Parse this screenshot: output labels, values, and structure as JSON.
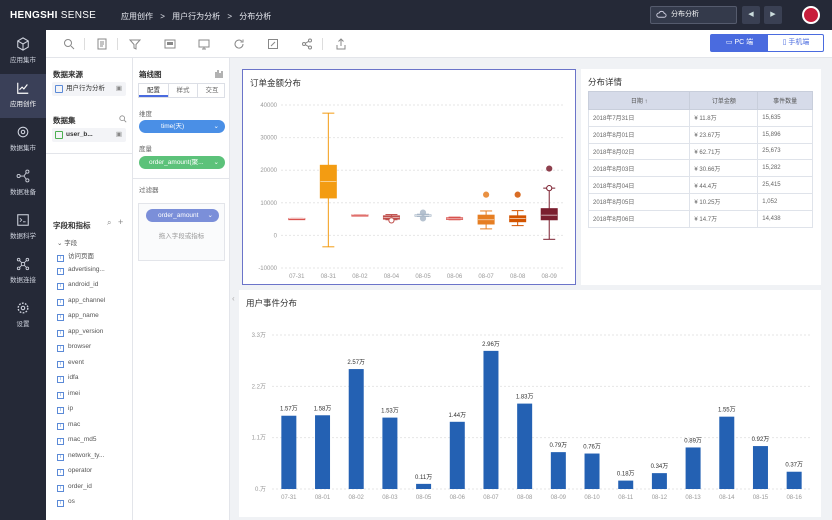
{
  "header": {
    "logo_bold": "HENGSHI",
    "logo_thin": " SENSE",
    "breadcrumb": [
      "应用创作",
      ">",
      "用户行为分析",
      ">",
      "分布分析"
    ],
    "search_value": "分布分析",
    "prev_label": "◀",
    "next_label": "▶"
  },
  "sidebar": {
    "items": [
      {
        "label": "应用集市",
        "icon": "cube-icon"
      },
      {
        "label": "应用创作",
        "icon": "chart-line-icon"
      },
      {
        "label": "数据集市",
        "icon": "database-icon"
      },
      {
        "label": "数据准备",
        "icon": "flow-icon"
      },
      {
        "label": "数据科学",
        "icon": "terminal-icon"
      },
      {
        "label": "数据连接",
        "icon": "link-icon"
      },
      {
        "label": "设置",
        "icon": "gear-icon"
      }
    ]
  },
  "toolbar": {
    "pc_label": "PC 端",
    "mobile_label": "手机端"
  },
  "datapanel": {
    "source_title": "数据来源",
    "source_value": "用户行为分析",
    "dataset_title": "数据集",
    "dataset_value": "user_b...",
    "fields_title": "字段和指标",
    "group_label": "字段",
    "fields": [
      "访问页面",
      "advertising...",
      "android_id",
      "app_channel",
      "app_name",
      "app_version",
      "browser",
      "event",
      "idfa",
      "imei",
      "ip",
      "mac",
      "mac_md5",
      "network_ty...",
      "operator",
      "order_id",
      "os"
    ]
  },
  "config": {
    "chart_type": "箱线图",
    "tabs": [
      "配置",
      "样式",
      "交互"
    ],
    "dimension_label": "维度",
    "dimension_value": "time(天)",
    "measure_label": "度量",
    "measure_value": "order_amount(聚...",
    "filter_label": "过滤器",
    "filter_value": "order_amount",
    "filter_hint": "拖入字段或指标"
  },
  "box_card": {
    "title": "订单金额分布"
  },
  "detail_card": {
    "title": "分布详情",
    "columns": [
      "日期 ↑",
      "订单金额",
      "事件数量"
    ],
    "rows": [
      [
        "2018年7月31日",
        "¥ 11.8万",
        "15,635"
      ],
      [
        "2018年8月01日",
        "¥ 23.67万",
        "15,896"
      ],
      [
        "2018年8月02日",
        "¥ 62.71万",
        "25,673"
      ],
      [
        "2018年8月03日",
        "¥ 30.66万",
        "15,282"
      ],
      [
        "2018年8月04日",
        "¥ 44.4万",
        "25,415"
      ],
      [
        "2018年8月05日",
        "¥ 10.25万",
        "1,052"
      ],
      [
        "2018年8月06日",
        "¥ 14.7万",
        "14,438"
      ]
    ]
  },
  "bar_card": {
    "title": "用户事件分布"
  },
  "chart_data": [
    {
      "type": "box",
      "title": "订单金额分布",
      "categories": [
        "07-31",
        "08-31",
        "08-02",
        "08-04",
        "08-05",
        "08-06",
        "08-07",
        "08-08",
        "08-09"
      ],
      "ylim": [
        -10000,
        40000
      ],
      "yticks": [
        "-10000",
        "0",
        "10000",
        "20000",
        "30000",
        "40000"
      ],
      "boxes": [
        {
          "min": 5200,
          "q1": 5200,
          "median": 5200,
          "q3": 5200,
          "max": 5200,
          "color": "#d9534f",
          "outliers": []
        },
        {
          "min": -3500,
          "q1": 11500,
          "median": 16500,
          "q3": 21500,
          "max": 37500,
          "color": "#f39c12",
          "outliers": []
        },
        {
          "min": 6300,
          "q1": 6300,
          "median": 6300,
          "q3": 6300,
          "max": 6300,
          "color": "#d9534f",
          "outliers": []
        },
        {
          "min": 4800,
          "q1": 5000,
          "median": 5500,
          "q3": 6000,
          "max": 6400,
          "color": "#c0504d",
          "outliers": [
            {
              "v": 4600,
              "hollow": true
            }
          ]
        },
        {
          "min": 5800,
          "q1": 5900,
          "median": 6100,
          "q3": 6300,
          "max": 6500,
          "color": "#aab8c8",
          "outliers": [
            {
              "v": 7000,
              "hollow": false
            },
            {
              "v": 5200,
              "hollow": false
            }
          ]
        },
        {
          "min": 4800,
          "q1": 4900,
          "median": 5100,
          "q3": 5400,
          "max": 5600,
          "color": "#d9534f",
          "outliers": []
        },
        {
          "min": 2000,
          "q1": 3500,
          "median": 4800,
          "q3": 6200,
          "max": 7500,
          "color": "#e67e22",
          "outliers": [
            {
              "v": 12500,
              "hollow": false
            }
          ]
        },
        {
          "min": 3000,
          "q1": 4200,
          "median": 5200,
          "q3": 6000,
          "max": 7600,
          "color": "#d35400",
          "outliers": [
            {
              "v": 12500,
              "hollow": false
            }
          ]
        },
        {
          "min": -1200,
          "q1": 4800,
          "median": 6200,
          "q3": 8200,
          "max": 14500,
          "color": "#7b1f2f",
          "outliers": [
            {
              "v": 14500,
              "hollow": true
            },
            {
              "v": 20500,
              "hollow": false
            }
          ]
        }
      ]
    },
    {
      "type": "bar",
      "title": "用户事件分布",
      "categories": [
        "07-31",
        "08-01",
        "08-02",
        "08-03",
        "08-05",
        "08-06",
        "08-07",
        "08-08",
        "08-09",
        "08-10",
        "08-11",
        "08-12",
        "08-13",
        "08-14",
        "08-15",
        "08-16"
      ],
      "values": [
        1.57,
        1.58,
        2.57,
        1.53,
        0.11,
        1.44,
        2.96,
        1.83,
        0.79,
        0.76,
        0.18,
        0.34,
        0.89,
        1.55,
        0.92,
        0.37
      ],
      "labels": [
        "1.57万",
        "1.58万",
        "2.57万",
        "1.53万",
        "0.11万",
        "1.44万",
        "2.96万",
        "1.83万",
        "0.79万",
        "0.76万",
        "0.18万",
        "0.34万",
        "0.89万",
        "1.55万",
        "0.92万",
        "0.37万"
      ],
      "ylim": [
        0,
        3.3
      ],
      "yticks": [
        "0.万",
        "1.1万",
        "2.2万",
        "3.3万"
      ],
      "ytick_values": [
        0,
        1.1,
        2.2,
        3.3
      ],
      "color": "#2461b3"
    }
  ]
}
